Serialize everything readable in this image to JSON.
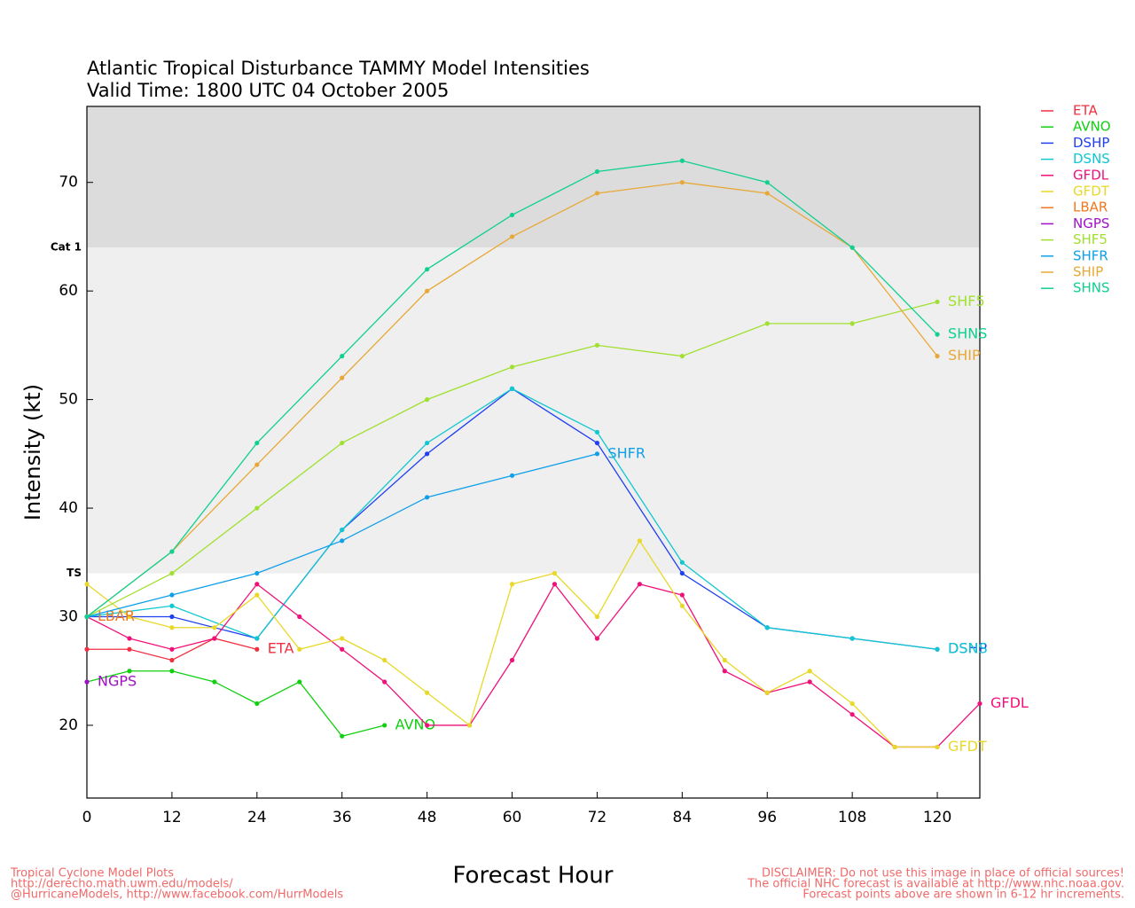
{
  "chart_data": {
    "type": "line",
    "title": "Atlantic Tropical Disturbance TAMMY Model Intensities",
    "subtitle": "Valid Time: 1800 UTC 04 October 2005",
    "xlabel": "Forecast Hour",
    "ylabel": "Intensity (kt)",
    "xlim": [
      0,
      126
    ],
    "ylim": [
      13.3,
      77
    ],
    "xticks": [
      0,
      12,
      24,
      36,
      48,
      60,
      72,
      84,
      96,
      108,
      120
    ],
    "yticks": [
      20,
      30,
      40,
      50,
      60,
      70
    ],
    "bands": [
      {
        "label": "TS",
        "value": 34,
        "color": "#efefef"
      },
      {
        "label": "Cat 1",
        "value": 64,
        "color": "#dcdcdc"
      }
    ],
    "legend": "right",
    "series": [
      {
        "name": "ETA",
        "color": "#f03040",
        "x": [
          0,
          6,
          12,
          18,
          24
        ],
        "values": [
          27,
          27,
          26,
          28,
          27
        ]
      },
      {
        "name": "AVNO",
        "color": "#10d010",
        "x": [
          0,
          6,
          12,
          18,
          24,
          30,
          36,
          42
        ],
        "values": [
          24,
          25,
          25,
          24,
          22,
          24,
          19,
          20
        ]
      },
      {
        "name": "DSHP",
        "color": "#2040f0",
        "x": [
          0,
          12,
          24,
          36,
          48,
          60,
          72,
          84,
          96,
          108,
          120
        ],
        "values": [
          30,
          30,
          28,
          38,
          45,
          51,
          46,
          34,
          29,
          28,
          27
        ]
      },
      {
        "name": "DSNS",
        "color": "#10c8d0",
        "x": [
          0,
          12,
          24,
          36,
          48,
          60,
          72,
          84,
          96,
          108,
          120
        ],
        "values": [
          30,
          31,
          28,
          38,
          46,
          51,
          47,
          35,
          29,
          28,
          27
        ]
      },
      {
        "name": "GFDL",
        "color": "#f0107a",
        "x": [
          0,
          6,
          12,
          18,
          24,
          30,
          36,
          42,
          48,
          54,
          60,
          66,
          72,
          78,
          84,
          90,
          96,
          102,
          108,
          114,
          120,
          126
        ],
        "values": [
          30,
          28,
          27,
          28,
          33,
          30,
          27,
          24,
          20,
          20,
          26,
          33,
          28,
          33,
          32,
          25,
          23,
          24,
          21,
          18,
          18,
          22
        ]
      },
      {
        "name": "GFDT",
        "color": "#e8d828",
        "x": [
          0,
          6,
          12,
          18,
          24,
          30,
          36,
          42,
          48,
          54,
          60,
          66,
          72,
          78,
          84,
          90,
          96,
          102,
          108,
          114,
          120
        ],
        "values": [
          33,
          30,
          29,
          29,
          32,
          27,
          28,
          26,
          23,
          20,
          33,
          34,
          30,
          37,
          31,
          26,
          23,
          25,
          22,
          18,
          18
        ]
      },
      {
        "name": "LBAR",
        "color": "#f07820",
        "x": [
          0
        ],
        "values": [
          30
        ]
      },
      {
        "name": "NGPS",
        "color": "#a010c8",
        "x": [
          0
        ],
        "values": [
          24
        ]
      },
      {
        "name": "SHF5",
        "color": "#a0e030",
        "x": [
          0,
          12,
          24,
          36,
          48,
          60,
          72,
          84,
          96,
          108,
          120
        ],
        "values": [
          30,
          34,
          40,
          46,
          50,
          53,
          55,
          54,
          57,
          57,
          59
        ]
      },
      {
        "name": "SHFR",
        "color": "#10a0e8",
        "x": [
          0,
          12,
          24,
          36,
          48,
          60,
          72
        ],
        "values": [
          30,
          32,
          34,
          37,
          41,
          43,
          45
        ]
      },
      {
        "name": "SHIP",
        "color": "#e8a838",
        "x": [
          0,
          12,
          24,
          36,
          48,
          60,
          72,
          84,
          96,
          108,
          120
        ],
        "values": [
          30,
          36,
          44,
          52,
          60,
          65,
          69,
          70,
          69,
          64,
          54
        ]
      },
      {
        "name": "SHNS",
        "color": "#10d090",
        "x": [
          0,
          12,
          24,
          36,
          48,
          60,
          72,
          84,
          96,
          108,
          120
        ],
        "values": [
          30,
          36,
          46,
          54,
          62,
          67,
          71,
          72,
          70,
          64,
          56
        ]
      }
    ],
    "notes_left": [
      "Tropical Cyclone Model Plots",
      "http://derecho.math.uwm.edu/models/",
      "@HurricaneModels, http://www.facebook.com/HurrModels"
    ],
    "notes_right": [
      "DISCLAIMER: Do not use this image in place of official sources!",
      "The official NHC forecast is available at http://www.nhc.noaa.gov.",
      "Forecast points above are shown in 6-12 hr increments."
    ]
  }
}
